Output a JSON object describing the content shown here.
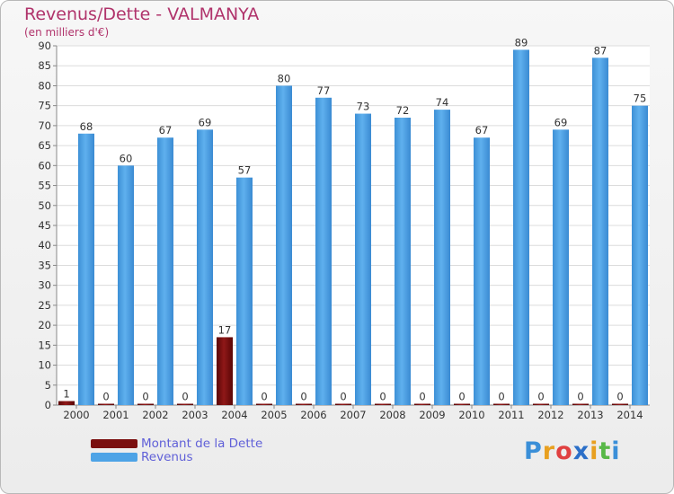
{
  "chart_data": {
    "type": "bar",
    "title": "Revenus/Dette - VALMANYA",
    "subtitle": "(en milliers d'€)",
    "categories": [
      "2000",
      "2001",
      "2002",
      "2003",
      "2004",
      "2005",
      "2006",
      "2007",
      "2008",
      "2009",
      "2010",
      "2011",
      "2012",
      "2013",
      "2014"
    ],
    "series": [
      {
        "name": "Montant de la Dette",
        "color": "#7a0e0e",
        "values": [
          1,
          0,
          0,
          0,
          17,
          0,
          0,
          0,
          0,
          0,
          0,
          0,
          0,
          0,
          0
        ]
      },
      {
        "name": "Revenus",
        "color": "#4da3e6",
        "values": [
          68,
          60,
          67,
          69,
          57,
          80,
          77,
          73,
          72,
          74,
          67,
          89,
          69,
          87,
          75
        ]
      }
    ],
    "ylim": [
      0,
      90
    ],
    "yticks": [
      0,
      5,
      10,
      15,
      20,
      25,
      30,
      35,
      40,
      45,
      50,
      55,
      60,
      65,
      70,
      75,
      80,
      85,
      90
    ],
    "grid": true,
    "xlabel": "",
    "ylabel": ""
  },
  "legend": {
    "debt_label": "Montant de la Dette",
    "revenue_label": "Revenus",
    "debt_color": "#7a0e0e",
    "revenue_color": "#4da3e6"
  },
  "logo": {
    "letters": [
      "P",
      "r",
      "o",
      "x",
      "i",
      "t",
      "i"
    ],
    "colors": [
      "#3a8fd8",
      "#e8a020",
      "#e04040",
      "#2b6fc8",
      "#e8a020",
      "#58b848",
      "#3a8fd8"
    ]
  }
}
